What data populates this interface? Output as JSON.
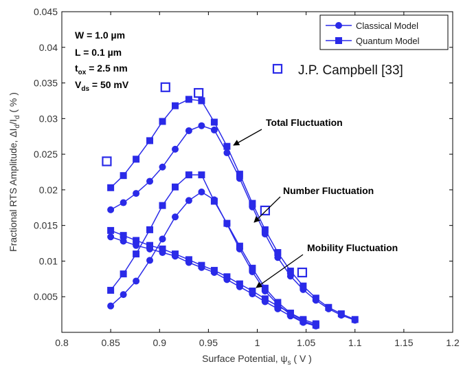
{
  "chart_data": {
    "type": "line",
    "title": "",
    "xlabel": "Surface Potential, ψs ( V )",
    "ylabel": "Fractional RTS Amplitude, ΔId/Id ( % )",
    "xlim": [
      0.8,
      1.2
    ],
    "ylim": [
      0,
      0.045
    ],
    "x_ticks": [
      "0.8",
      "0.85",
      "0.9",
      "0.95",
      "1",
      "1.05",
      "1.1",
      "1.15",
      "1.2"
    ],
    "y_ticks": [
      "0.005",
      "0.01",
      "0.015",
      "0.02",
      "0.025",
      "0.03",
      "0.035",
      "0.04",
      "0.045"
    ],
    "grid": false,
    "legend_position": "top-right",
    "legend": [
      {
        "label": "Classical Model",
        "marker": "circle"
      },
      {
        "label": "Quantum Model",
        "marker": "square"
      }
    ],
    "parameters": {
      "w": {
        "main": "W = 1.0 µm"
      },
      "l": {
        "main": "L  = 0.1 µm"
      },
      "tox": {
        "main": "t",
        "sub": "ox",
        "rest": " = 2.5 nm"
      },
      "vds": {
        "main": "V",
        "sub": "ds",
        "rest": " = 50 mV"
      }
    },
    "annotations": {
      "total": "Total Fluctuation",
      "number": "Number Fluctuation",
      "mobility": "Mobility Fluctuation",
      "reference": "J.P. Campbell  [33]"
    },
    "series": [
      {
        "group": "total",
        "model": "classical",
        "marker": "circle",
        "x": [
          0.85,
          0.863,
          0.876,
          0.89,
          0.903,
          0.916,
          0.93,
          0.943,
          0.956,
          0.969,
          0.982,
          0.995,
          1.008,
          1.021,
          1.034,
          1.047,
          1.06,
          1.073,
          1.086,
          1.1
        ],
        "y": [
          0.0172,
          0.0182,
          0.0195,
          0.0212,
          0.0232,
          0.0257,
          0.0283,
          0.029,
          0.0284,
          0.0252,
          0.0216,
          0.0176,
          0.0138,
          0.0105,
          0.0079,
          0.006,
          0.0045,
          0.0033,
          0.0024,
          0.0017
        ]
      },
      {
        "group": "total",
        "model": "quantum",
        "marker": "square",
        "x": [
          0.85,
          0.863,
          0.876,
          0.89,
          0.903,
          0.916,
          0.93,
          0.943,
          0.956,
          0.969,
          0.982,
          0.995,
          1.008,
          1.021,
          1.034,
          1.047,
          1.06,
          1.073,
          1.086,
          1.1
        ],
        "y": [
          0.0203,
          0.022,
          0.0243,
          0.0269,
          0.0296,
          0.0318,
          0.0327,
          0.0325,
          0.0295,
          0.0261,
          0.0222,
          0.0181,
          0.0144,
          0.0112,
          0.0086,
          0.0065,
          0.0048,
          0.0035,
          0.0026,
          0.0018
        ]
      },
      {
        "group": "number",
        "model": "classical",
        "marker": "circle",
        "x": [
          0.85,
          0.863,
          0.876,
          0.89,
          0.903,
          0.916,
          0.93,
          0.943,
          0.956,
          0.969,
          0.982,
          0.995,
          1.008,
          1.021,
          1.034,
          1.047,
          1.06
        ],
        "y": [
          0.0037,
          0.0053,
          0.0072,
          0.0101,
          0.0131,
          0.0162,
          0.0185,
          0.0197,
          0.0186,
          0.0152,
          0.0117,
          0.0085,
          0.0058,
          0.0039,
          0.0025,
          0.0014,
          0.0009
        ]
      },
      {
        "group": "number",
        "model": "quantum",
        "marker": "square",
        "x": [
          0.85,
          0.863,
          0.876,
          0.89,
          0.903,
          0.916,
          0.93,
          0.943,
          0.956,
          0.969,
          0.982,
          0.995,
          1.008,
          1.021,
          1.034,
          1.047,
          1.06
        ],
        "y": [
          0.0059,
          0.0082,
          0.011,
          0.0144,
          0.0178,
          0.0204,
          0.0221,
          0.0221,
          0.0184,
          0.0153,
          0.0121,
          0.009,
          0.0062,
          0.0042,
          0.0027,
          0.0016,
          0.001
        ]
      },
      {
        "group": "mobility",
        "model": "classical",
        "marker": "circle",
        "x": [
          0.85,
          0.863,
          0.876,
          0.89,
          0.903,
          0.916,
          0.93,
          0.943,
          0.956,
          0.969,
          0.982,
          0.995,
          1.008,
          1.021,
          1.034,
          1.047,
          1.06
        ],
        "y": [
          0.0134,
          0.0128,
          0.0122,
          0.0117,
          0.0112,
          0.0107,
          0.0098,
          0.0091,
          0.0084,
          0.0074,
          0.0064,
          0.0054,
          0.0043,
          0.0033,
          0.0023,
          0.0014,
          0.0009
        ]
      },
      {
        "group": "mobility",
        "model": "quantum",
        "marker": "square",
        "x": [
          0.85,
          0.863,
          0.876,
          0.89,
          0.903,
          0.916,
          0.93,
          0.943,
          0.956,
          0.969,
          0.982,
          0.995,
          1.008,
          1.021,
          1.034,
          1.047,
          1.06
        ],
        "y": [
          0.0143,
          0.0136,
          0.0129,
          0.0122,
          0.0117,
          0.011,
          0.0102,
          0.0094,
          0.0087,
          0.0078,
          0.0068,
          0.0058,
          0.0047,
          0.0037,
          0.0027,
          0.0018,
          0.0012
        ]
      },
      {
        "group": "reference",
        "model": "measured",
        "marker": "open-square",
        "x": [
          0.846,
          0.906,
          0.94,
          1.008,
          1.046
        ],
        "y": [
          0.024,
          0.0344,
          0.0336,
          0.0171,
          0.0084
        ]
      }
    ]
  },
  "colors": {
    "series": "#2a2ae8",
    "axis": "#000000",
    "background": "#ffffff"
  }
}
